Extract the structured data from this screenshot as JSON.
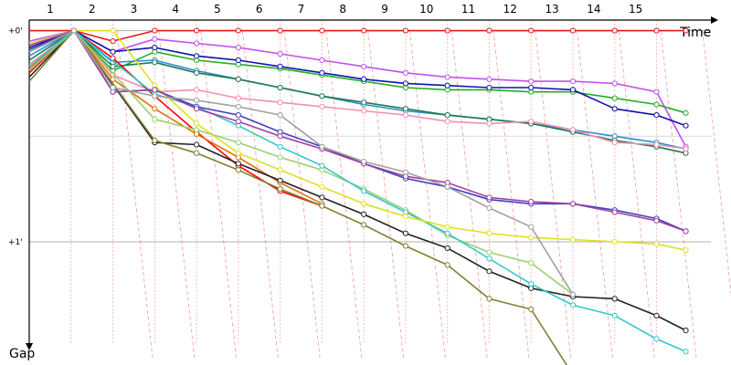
{
  "chart_data": {
    "type": "line",
    "xlabel": "Time",
    "ylabel": "Gap",
    "x_ticks": [
      "1",
      "2",
      "3",
      "4",
      "5",
      "6",
      "7",
      "8",
      "9",
      "10",
      "11",
      "12",
      "13",
      "14",
      "15"
    ],
    "y_ticks": [
      {
        "value": 0,
        "label": "+0'"
      },
      {
        "value": 1,
        "label": "+1'"
      }
    ],
    "xlim": [
      0.5,
      16.8
    ],
    "ylim": [
      -0.05,
      1.48
    ],
    "grid": true,
    "series": [
      {
        "color": "#e41a1c",
        "x": [
          0.5,
          1.57,
          2.5,
          3.5,
          4.5,
          5.5,
          6.5,
          7.5,
          8.5,
          9.5,
          10.5,
          11.5,
          12.5,
          13.5,
          14.5,
          15.5,
          16.2
        ],
        "y": [
          0,
          0,
          0.05,
          0,
          0,
          0,
          0,
          0,
          0,
          0,
          0,
          0,
          0,
          0,
          0,
          0,
          0
        ]
      },
      {
        "color": "#c050f0",
        "x": [
          0.5,
          1.57,
          2.5,
          3.5,
          4.5,
          5.5,
          6.5,
          7.5,
          8.5,
          9.5,
          10.5,
          11.5,
          12.5,
          13.5,
          14.5,
          15.5,
          16.2
        ],
        "y": [
          0.05,
          0,
          0.1,
          0.04,
          0.06,
          0.08,
          0.11,
          0.14,
          0.17,
          0.2,
          0.22,
          0.23,
          0.24,
          0.24,
          0.25,
          0.29,
          0.55
        ]
      },
      {
        "color": "#1fb01f",
        "x": [
          0.5,
          1.57,
          2.5,
          3.5,
          4.5,
          5.5,
          6.5,
          7.5,
          8.5,
          9.5,
          10.5,
          11.5,
          12.5,
          13.5,
          14.5,
          15.5,
          16.2
        ],
        "y": [
          0.1,
          0,
          0.19,
          0.1,
          0.14,
          0.16,
          0.18,
          0.21,
          0.24,
          0.27,
          0.28,
          0.28,
          0.29,
          0.29,
          0.32,
          0.35,
          0.39
        ]
      },
      {
        "color": "#1010b0",
        "x": [
          0.5,
          1.57,
          2.5,
          3.5,
          4.5,
          5.5,
          6.5,
          7.5,
          8.5,
          9.5,
          10.5,
          11.5,
          12.5,
          13.5,
          14.5,
          15.5,
          16.2
        ],
        "y": [
          0.08,
          0,
          0.1,
          0.08,
          0.12,
          0.14,
          0.17,
          0.2,
          0.23,
          0.25,
          0.26,
          0.27,
          0.27,
          0.28,
          0.37,
          0.4,
          0.45
        ]
      },
      {
        "color": "#2a8fd0",
        "x": [
          0.5,
          1.57,
          2.5,
          3.5,
          4.5,
          5.5,
          6.5,
          7.5,
          8.5,
          9.5,
          10.5,
          11.5,
          12.5,
          13.5,
          14.5,
          15.5,
          16.2
        ],
        "y": [
          0.12,
          0,
          0.15,
          0.14,
          0.19,
          0.23,
          0.27,
          0.31,
          0.35,
          0.38,
          0.4,
          0.42,
          0.44,
          0.47,
          0.5,
          0.53,
          0.56
        ]
      },
      {
        "color": "#207a50",
        "x": [
          0.5,
          1.57,
          2.5,
          3.5,
          4.5,
          5.5,
          6.5,
          7.5,
          8.5,
          9.5,
          10.5,
          11.5,
          12.5,
          13.5,
          14.5,
          15.5,
          16.2
        ],
        "y": [
          0.14,
          0,
          0.17,
          0.15,
          0.2,
          0.23,
          0.27,
          0.31,
          0.34,
          0.37,
          0.4,
          0.42,
          0.44,
          0.48,
          0.52,
          0.55,
          0.58
        ]
      },
      {
        "color": "#f48fb1",
        "x": [
          0.5,
          1.57,
          2.5,
          3.5,
          4.5,
          5.5,
          6.5,
          7.5,
          8.5,
          9.5,
          10.5,
          11.5,
          12.5,
          13.5,
          14.5,
          15.5,
          16.2
        ],
        "y": [
          0.16,
          0,
          0.21,
          0.29,
          0.28,
          0.32,
          0.34,
          0.36,
          0.38,
          0.4,
          0.43,
          0.44,
          0.43,
          0.47,
          0.53,
          0.54,
          0.56
        ]
      },
      {
        "color": "#ff0000",
        "x": [
          0.5,
          1.57,
          2.5,
          3.5,
          4.5,
          5.5,
          6.5,
          7.5
        ],
        "y": [
          0.2,
          0,
          0.13,
          0.31,
          0.48,
          0.64,
          0.76,
          0.83
        ]
      },
      {
        "color": "#e07010",
        "x": [
          0.5,
          1.57,
          2.5,
          3.5,
          4.5,
          5.5,
          6.5,
          7.5
        ],
        "y": [
          0.18,
          0,
          0.23,
          0.37,
          0.49,
          0.6,
          0.72,
          0.82
        ]
      },
      {
        "color": "#222222",
        "x": [
          0.5,
          1.57,
          3.5,
          4.5,
          5.5,
          6.5,
          7.5,
          8.5,
          9.5,
          10.5,
          11.5,
          12.5,
          13.5,
          14.5,
          15.5,
          16.2
        ],
        "y": [
          0.22,
          0,
          0.53,
          0.54,
          0.63,
          0.71,
          0.79,
          0.87,
          0.96,
          1.03,
          1.14,
          1.22,
          1.26,
          1.27,
          1.35,
          1.42
        ]
      },
      {
        "color": "#808030",
        "x": [
          0.5,
          1.57,
          3.5,
          4.5,
          5.5,
          6.5,
          7.5,
          8.5,
          9.5,
          10.5,
          11.5,
          12.5,
          13.5
        ],
        "y": [
          0.24,
          0,
          0.52,
          0.58,
          0.66,
          0.75,
          0.83,
          0.92,
          1.02,
          1.11,
          1.27,
          1.32,
          1.63
        ]
      },
      {
        "color": "#9bd070",
        "x": [
          0.5,
          1.57,
          3.5,
          4.5,
          5.5,
          6.5,
          7.5,
          8.5,
          9.5,
          10.5,
          11.5,
          12.5,
          13.5
        ],
        "y": [
          0.19,
          0,
          0.42,
          0.47,
          0.53,
          0.6,
          0.66,
          0.75,
          0.85,
          0.97,
          1.05,
          1.1,
          1.25
        ]
      },
      {
        "color": "#30c8c8",
        "x": [
          0.5,
          1.57,
          3.5,
          4.5,
          5.5,
          6.5,
          7.5,
          8.5,
          9.5,
          10.5,
          11.5,
          12.5,
          13.5,
          14.5,
          15.5,
          16.2
        ],
        "y": [
          0.17,
          0,
          0.3,
          0.36,
          0.45,
          0.55,
          0.64,
          0.76,
          0.86,
          0.96,
          1.08,
          1.2,
          1.3,
          1.35,
          1.46,
          1.52
        ]
      },
      {
        "color": "#e0e020",
        "x": [
          0.5,
          1.57,
          2.5,
          3.5,
          4.5,
          5.5,
          6.5,
          7.5,
          8.5,
          9.5,
          10.5,
          11.5,
          12.5,
          13.5,
          14.5,
          15.5,
          16.2
        ],
        "y": [
          0.06,
          0,
          0,
          0.26,
          0.44,
          0.58,
          0.66,
          0.74,
          0.82,
          0.88,
          0.93,
          0.96,
          0.98,
          0.99,
          1.0,
          1.01,
          1.04
        ]
      },
      {
        "color": "#4040c0",
        "x": [
          0.5,
          1.57,
          2.5,
          3.5,
          4.5,
          5.5,
          6.5,
          7.5,
          8.5,
          9.5,
          10.5,
          11.5,
          12.5,
          13.5,
          14.5,
          15.5,
          16.2
        ],
        "y": [
          0.09,
          0,
          0.29,
          0.28,
          0.36,
          0.4,
          0.48,
          0.55,
          0.63,
          0.7,
          0.74,
          0.8,
          0.82,
          0.82,
          0.85,
          0.89,
          0.95
        ]
      },
      {
        "color": "#a040a0",
        "x": [
          0.5,
          1.57,
          2.5,
          3.5,
          4.5,
          5.5,
          6.5,
          7.5,
          8.5,
          9.5,
          10.5,
          11.5,
          12.5,
          13.5,
          14.5,
          15.5,
          16.2
        ],
        "y": [
          0.07,
          0,
          0.29,
          0.28,
          0.37,
          0.43,
          0.5,
          0.56,
          0.63,
          0.69,
          0.72,
          0.79,
          0.81,
          0.82,
          0.86,
          0.9,
          0.95
        ]
      },
      {
        "color": "#a0a0a0",
        "x": [
          0.5,
          1.57,
          2.5,
          3.5,
          4.5,
          5.5,
          6.5,
          7.5,
          8.5,
          9.5,
          10.5,
          11.5,
          12.5,
          13.5
        ],
        "y": [
          0.1,
          0,
          0.27,
          0.31,
          0.33,
          0.36,
          0.4,
          0.55,
          0.62,
          0.67,
          0.74,
          0.84,
          0.93,
          1.25
        ]
      }
    ]
  }
}
